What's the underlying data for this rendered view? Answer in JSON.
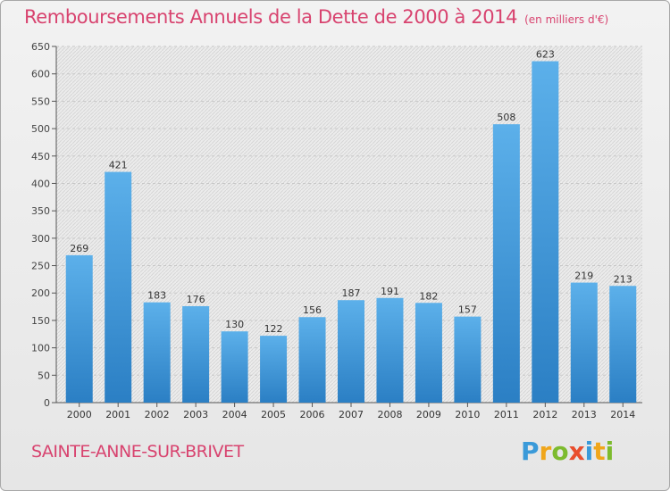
{
  "header": {
    "title": "Remboursements Annuels de la Dette de 2000 à 2014",
    "unit": "(en milliers d'€)"
  },
  "footer": {
    "commune": "SAINTE-ANNE-SUR-BRIVET",
    "logo": "Proxiti"
  },
  "colors": {
    "title": "#d8436f",
    "bar_light": "#5aaee8",
    "bar_dark": "#2f84c9"
  },
  "chart_data": {
    "type": "bar",
    "title": "Remboursements Annuels de la Dette de 2000 à 2014",
    "subtitle": "(en milliers d'€)",
    "xlabel": "",
    "ylabel": "",
    "categories": [
      "2000",
      "2001",
      "2002",
      "2003",
      "2004",
      "2005",
      "2006",
      "2007",
      "2008",
      "2009",
      "2010",
      "2011",
      "2012",
      "2013",
      "2014"
    ],
    "values": [
      269,
      421,
      183,
      176,
      130,
      122,
      156,
      187,
      191,
      182,
      157,
      508,
      623,
      219,
      213
    ],
    "ylim": [
      0,
      650
    ],
    "yticks": [
      0,
      50,
      100,
      150,
      200,
      250,
      300,
      350,
      400,
      450,
      500,
      550,
      600,
      650
    ],
    "grid": true,
    "legend": "none"
  }
}
